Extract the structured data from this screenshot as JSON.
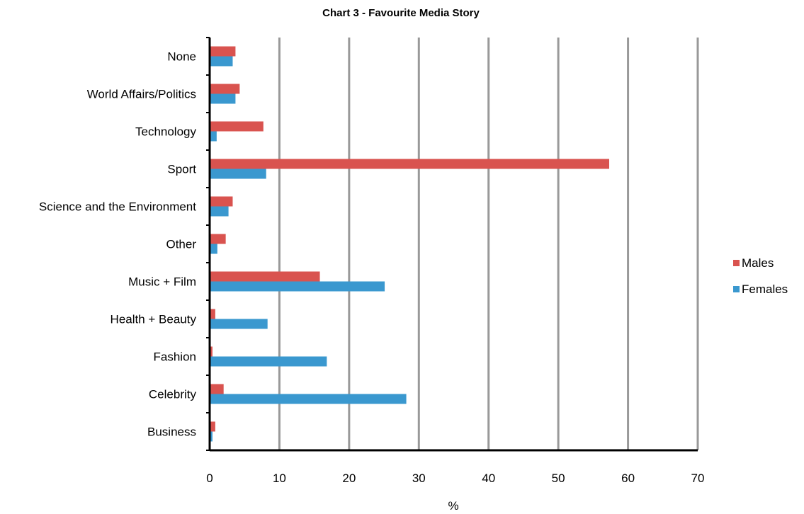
{
  "chart_data": {
    "type": "bar",
    "orientation": "horizontal",
    "title": "Chart 3 - Favourite Media Story",
    "xlabel": "%",
    "ylabel": "",
    "xlim": [
      0,
      70
    ],
    "x_ticks": [
      "0",
      "10",
      "20",
      "30",
      "40",
      "50",
      "60",
      "70"
    ],
    "grid": true,
    "legend_position": "right",
    "categories": [
      "None",
      "World Affairs/Politics",
      "Technology",
      "Sport",
      "Science and the Environment",
      "Other",
      "Music + Film",
      "Health + Beauty",
      "Fashion",
      "Celebrity",
      "Business"
    ],
    "series": [
      {
        "name": "Males",
        "color": "#d9534f",
        "values": [
          3.7,
          4.3,
          7.7,
          57.3,
          3.3,
          2.3,
          15.8,
          0.8,
          0.4,
          2.0,
          0.8
        ]
      },
      {
        "name": "Females",
        "color": "#3a98cf",
        "values": [
          3.3,
          3.7,
          1.0,
          8.1,
          2.7,
          1.1,
          25.1,
          8.3,
          16.8,
          28.2,
          0.4
        ]
      }
    ],
    "colors": {
      "gridline": "#999999",
      "axis": "#000000"
    }
  }
}
